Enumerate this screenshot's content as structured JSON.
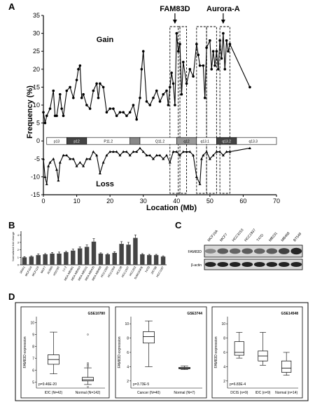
{
  "panelA": {
    "letter": "A",
    "ylabel": "Frequency (%)",
    "xlabel": "Location (Mb)",
    "gain_label": "Gain",
    "loss_label": "Loss",
    "markers": [
      {
        "label": "FAM83D",
        "x": 39.5
      },
      {
        "label": "Aurora-A",
        "x": 54
      }
    ],
    "ylim": [
      -15,
      35
    ],
    "xlim": [
      0,
      70
    ],
    "y_ticks": [
      "35",
      "30",
      "25",
      "20",
      "15",
      "10",
      "5",
      "0",
      "-5",
      "-10",
      "-15"
    ],
    "x_ticks": [
      "0",
      "10",
      "20",
      "30",
      "40",
      "50",
      "60",
      "70"
    ],
    "bands": [
      "p13",
      "p12",
      "P11.2",
      "Q11.2",
      "q12",
      "q13.1",
      "q13.2",
      "q13.3"
    ],
    "highlight_regions": [
      [
        38,
        41
      ],
      [
        40.5,
        43
      ],
      [
        46,
        49
      ],
      [
        49,
        52
      ],
      [
        53,
        56
      ]
    ],
    "gain": [
      [
        0,
        8
      ],
      [
        0.5,
        5
      ],
      [
        1,
        7
      ],
      [
        2,
        9
      ],
      [
        3,
        14
      ],
      [
        3.5,
        7
      ],
      [
        4,
        7
      ],
      [
        5,
        13
      ],
      [
        5.5,
        9
      ],
      [
        6,
        7
      ],
      [
        7,
        14
      ],
      [
        8,
        15
      ],
      [
        9,
        12
      ],
      [
        10,
        17
      ],
      [
        10.5,
        20
      ],
      [
        11,
        21
      ],
      [
        11.5,
        12
      ],
      [
        12,
        13
      ],
      [
        13,
        10
      ],
      [
        14,
        9
      ],
      [
        15,
        14
      ],
      [
        16,
        16
      ],
      [
        16.5,
        12
      ],
      [
        17,
        16
      ],
      [
        18,
        15
      ],
      [
        19,
        8
      ],
      [
        20,
        9
      ],
      [
        21,
        9
      ],
      [
        22,
        7
      ],
      [
        23,
        8
      ],
      [
        24,
        8
      ],
      [
        25,
        7
      ],
      [
        26,
        8
      ],
      [
        27,
        10
      ],
      [
        28,
        6
      ],
      [
        29,
        12
      ],
      [
        29.5,
        20
      ],
      [
        30,
        25
      ],
      [
        31,
        11
      ],
      [
        32,
        10
      ],
      [
        33,
        12
      ],
      [
        34,
        14
      ],
      [
        35,
        11
      ],
      [
        36,
        13
      ],
      [
        37,
        14
      ],
      [
        37.5,
        10
      ],
      [
        38,
        15
      ],
      [
        38.5,
        19
      ],
      [
        39,
        16
      ],
      [
        39.5,
        10
      ],
      [
        40,
        30
      ],
      [
        40.5,
        25
      ],
      [
        41,
        27
      ],
      [
        41.5,
        13
      ],
      [
        42,
        22
      ],
      [
        43,
        16
      ],
      [
        44,
        20
      ],
      [
        45,
        18
      ],
      [
        46,
        27
      ],
      [
        46.5,
        24
      ],
      [
        47,
        21
      ],
      [
        48,
        21
      ],
      [
        48.5,
        12
      ],
      [
        49,
        26
      ],
      [
        50,
        28
      ],
      [
        50.5,
        20
      ],
      [
        51,
        25
      ],
      [
        51.5,
        21
      ],
      [
        52,
        25
      ],
      [
        52.5,
        20
      ],
      [
        53,
        28
      ],
      [
        53.5,
        23
      ],
      [
        54,
        30
      ],
      [
        54.5,
        20
      ],
      [
        55,
        28
      ],
      [
        55.5,
        25
      ],
      [
        56,
        27
      ],
      [
        62,
        15
      ]
    ],
    "loss": [
      [
        0,
        -5
      ],
      [
        0.5,
        -10
      ],
      [
        1,
        -12
      ],
      [
        1.5,
        -7
      ],
      [
        2,
        -6
      ],
      [
        3,
        -5
      ],
      [
        4,
        -8
      ],
      [
        4.5,
        -11
      ],
      [
        5,
        -6
      ],
      [
        6,
        -4
      ],
      [
        7,
        -4
      ],
      [
        8,
        -5
      ],
      [
        9,
        -5
      ],
      [
        10,
        -7
      ],
      [
        11,
        -6
      ],
      [
        12,
        -7
      ],
      [
        13,
        -5
      ],
      [
        14,
        -5
      ],
      [
        15,
        -3
      ],
      [
        16,
        -4
      ],
      [
        17,
        -9
      ],
      [
        18,
        -6
      ],
      [
        19,
        -4
      ],
      [
        20,
        -3
      ],
      [
        21,
        -3
      ],
      [
        22,
        -3
      ],
      [
        23,
        -4
      ],
      [
        24,
        -3
      ],
      [
        25,
        -3
      ],
      [
        26,
        -4
      ],
      [
        27,
        -3
      ],
      [
        28,
        -3
      ],
      [
        29,
        -2
      ],
      [
        30,
        -3
      ],
      [
        31,
        -4
      ],
      [
        32,
        -4
      ],
      [
        33,
        -5
      ],
      [
        34,
        -4
      ],
      [
        35,
        -4
      ],
      [
        36,
        -5
      ],
      [
        37,
        -4
      ],
      [
        38,
        -6
      ],
      [
        39,
        -3
      ],
      [
        40,
        -3
      ],
      [
        41,
        -4
      ],
      [
        42,
        -3
      ],
      [
        43,
        -3
      ],
      [
        44,
        -3
      ],
      [
        45,
        -4
      ],
      [
        46,
        -10
      ],
      [
        47,
        -12
      ],
      [
        47.5,
        -5
      ],
      [
        48,
        -4
      ],
      [
        49,
        -3
      ],
      [
        50,
        -5
      ],
      [
        51,
        -4
      ],
      [
        52,
        -3
      ],
      [
        53,
        -3
      ],
      [
        54,
        -4
      ],
      [
        55,
        -3
      ],
      [
        56,
        -3
      ],
      [
        62,
        -2
      ]
    ]
  },
  "panelB": {
    "letter": "B",
    "ylabel": "Normalized fold change",
    "categories": [
      "184A1",
      "MCF10A",
      "MCF12A",
      "MCF7",
      "AU565",
      "HS578T",
      "LY-2",
      "MDA-MB361",
      "MDA-MB453",
      "MDA-MB231",
      "MDA-MB435",
      "MDA-MB468",
      "HCC1569",
      "HCC1954",
      "HCC38",
      "HCC1937",
      "HCC202",
      "SUM159PE",
      "T47D",
      "ZR75B",
      "HCC1187"
    ],
    "values": [
      1.0,
      1.1,
      1.3,
      1.4,
      1.5,
      1.5,
      1.7,
      1.9,
      2.2,
      2.4,
      3.1,
      1.5,
      1.4,
      1.6,
      2.8,
      2.7,
      3.6,
      1.4,
      1.3,
      1.3,
      1.1
    ],
    "errors": [
      0.1,
      0.1,
      0.15,
      0.1,
      0.15,
      0.2,
      0.1,
      0.2,
      0.2,
      0.25,
      0.4,
      0.1,
      0.1,
      0.15,
      0.3,
      0.3,
      0.4,
      0.1,
      0.1,
      0.1,
      0.1
    ]
  },
  "panelC": {
    "letter": "C",
    "cells": [
      "MCF10A",
      "MCF7",
      "HCC3153",
      "HCC1937",
      "T47D",
      "MB231",
      "MB468",
      "BT549"
    ],
    "rows": [
      "FAM83D",
      "β-actin"
    ],
    "fam_intensity": [
      0.35,
      0.6,
      0.55,
      0.6,
      0.55,
      0.6,
      0.75,
      0.9
    ]
  },
  "panelD": {
    "letter": "D",
    "ylabel": "FAM83D expression",
    "boxes": [
      {
        "title": "GSE10780",
        "pvalue": "p=9.46E-20",
        "groups": [
          "IDC (N=42)",
          "Normal (N=142)"
        ],
        "yticks": [
          "10",
          "9",
          "8",
          "7",
          "6",
          "5"
        ],
        "ylim": [
          4.5,
          10.5
        ],
        "stats": [
          [
            5.7,
            6.5,
            6.9,
            7.3,
            9.2
          ],
          [
            4.8,
            5.1,
            5.2,
            5.4,
            6.2
          ]
        ],
        "outliers": [
          [],
          [
            9.0,
            6.6,
            6.5,
            6.4,
            6.3,
            4.6
          ]
        ]
      },
      {
        "title": "GSE3744",
        "pvalue": "p=3.73E-5",
        "groups": [
          "Cancer (N=40)",
          "Normal (N=7)"
        ],
        "yticks": [
          "10",
          "8",
          "6",
          "4",
          "2"
        ],
        "ylim": [
          1,
          11
        ],
        "stats": [
          [
            4.0,
            7.3,
            8.2,
            8.9,
            10.4
          ],
          [
            3.6,
            3.7,
            3.8,
            3.9,
            4.1
          ]
        ],
        "outliers": [
          [],
          []
        ]
      },
      {
        "title": "GSE14548",
        "pvalue": "p=6.83E-4",
        "groups": [
          "DCIS (n=9)",
          "IDC (n=9)",
          "Normal (n=14)"
        ],
        "yticks": [
          "10",
          "8",
          "6",
          "4",
          "2"
        ],
        "ylim": [
          1,
          11
        ],
        "stats": [
          [
            5.2,
            5.6,
            6.0,
            7.5,
            8.8
          ],
          [
            4.2,
            4.8,
            5.5,
            6.2,
            8.8
          ],
          [
            2.8,
            3.2,
            3.8,
            4.8,
            6.0
          ]
        ],
        "outliers": [
          [],
          [],
          []
        ]
      }
    ]
  }
}
